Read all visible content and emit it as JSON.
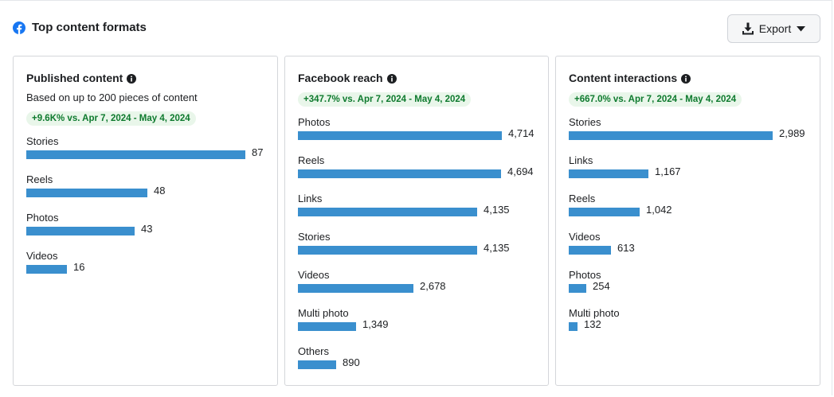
{
  "header": {
    "title": "Top content formats",
    "icon": "facebook-icon",
    "brand_color": "#1877f2"
  },
  "export": {
    "label": "Export",
    "icon": "download-icon"
  },
  "cards": [
    {
      "title": "Published content",
      "subtitle": "Based on up to 200 pieces of content",
      "badge": "+9.6K% vs. Apr 7, 2024 - May 4, 2024",
      "rows": [
        {
          "label": "Stories",
          "value": 87,
          "display": "87"
        },
        {
          "label": "Reels",
          "value": 48,
          "display": "48"
        },
        {
          "label": "Photos",
          "value": 43,
          "display": "43"
        },
        {
          "label": "Videos",
          "value": 16,
          "display": "16"
        }
      ]
    },
    {
      "title": "Facebook reach",
      "badge": "+347.7% vs. Apr 7, 2024 - May 4, 2024",
      "rows": [
        {
          "label": "Photos",
          "value": 4714,
          "display": "4,714"
        },
        {
          "label": "Reels",
          "value": 4694,
          "display": "4,694"
        },
        {
          "label": "Links",
          "value": 4135,
          "display": "4,135"
        },
        {
          "label": "Stories",
          "value": 4135,
          "display": "4,135"
        },
        {
          "label": "Videos",
          "value": 2678,
          "display": "2,678"
        },
        {
          "label": "Multi photo",
          "value": 1349,
          "display": "1,349"
        },
        {
          "label": "Others",
          "value": 890,
          "display": "890"
        }
      ]
    },
    {
      "title": "Content interactions",
      "badge": "+667.0% vs. Apr 7, 2024 - May 4, 2024",
      "rows": [
        {
          "label": "Stories",
          "value": 2989,
          "display": "2,989"
        },
        {
          "label": "Links",
          "value": 1167,
          "display": "1,167"
        },
        {
          "label": "Reels",
          "value": 1042,
          "display": "1,042"
        },
        {
          "label": "Videos",
          "value": 613,
          "display": "613"
        },
        {
          "label": "Photos",
          "value": 254,
          "display": "254"
        },
        {
          "label": "Multi photo",
          "value": 132,
          "display": "132"
        }
      ]
    }
  ],
  "colors": {
    "bar": "#3a8fce",
    "badge_bg": "#e9f6ea",
    "badge_text": "#0e7a2e"
  }
}
